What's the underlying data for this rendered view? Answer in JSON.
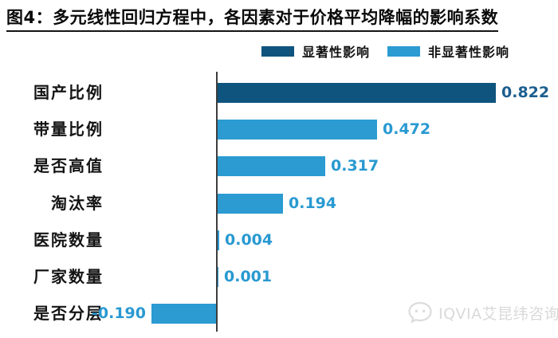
{
  "figure": {
    "title": "图4：多元线性回归方程中，各因素对于价格平均降幅的影响系数"
  },
  "legend": {
    "items": [
      {
        "label": "显著性影响",
        "color": "#0E547E"
      },
      {
        "label": "非显著性影响",
        "color": "#2B9BD2"
      }
    ]
  },
  "chart_data": {
    "type": "bar",
    "orientation": "horizontal",
    "title": "图4：多元线性回归方程中，各因素对于价格平均降幅的影响系数",
    "categories": [
      "国产比例",
      "带量比例",
      "是否高值",
      "淘汰率",
      "医院数量",
      "厂家数量",
      "是否分层"
    ],
    "values": [
      0.822,
      0.472,
      0.317,
      0.194,
      0.004,
      0.001,
      -0.19
    ],
    "value_labels": [
      "0.822",
      "0.472",
      "0.317",
      "0.194",
      "0.004",
      "0.001",
      "-0.190"
    ],
    "series_of_point": [
      "显著性影响",
      "非显著性影响",
      "非显著性影响",
      "非显著性影响",
      "非显著性影响",
      "非显著性影响",
      "非显著性影响"
    ],
    "series": [
      {
        "name": "显著性影响",
        "color": "#0E547E",
        "points": {
          "国产比例": 0.822
        }
      },
      {
        "name": "非显著性影响",
        "color": "#2B9BD2",
        "points": {
          "带量比例": 0.472,
          "是否高值": 0.317,
          "淘汰率": 0.194,
          "医院数量": 0.004,
          "厂家数量": 0.001,
          "是否分层": -0.19
        }
      }
    ],
    "xlim": [
      -0.26,
      1.01
    ],
    "grid": false,
    "legend_position": "top",
    "axis_color": "#3d3d3d"
  },
  "colors": {
    "significant": "#0E547E",
    "non_significant": "#2B9BD2",
    "value_label_significant": "#1D5E8F",
    "value_label_non_significant": "#2999D1",
    "axis": "#3d3d3d",
    "watermark": "#d9d9d9"
  },
  "watermark": {
    "text": "IQVIA艾昆纬咨询"
  }
}
